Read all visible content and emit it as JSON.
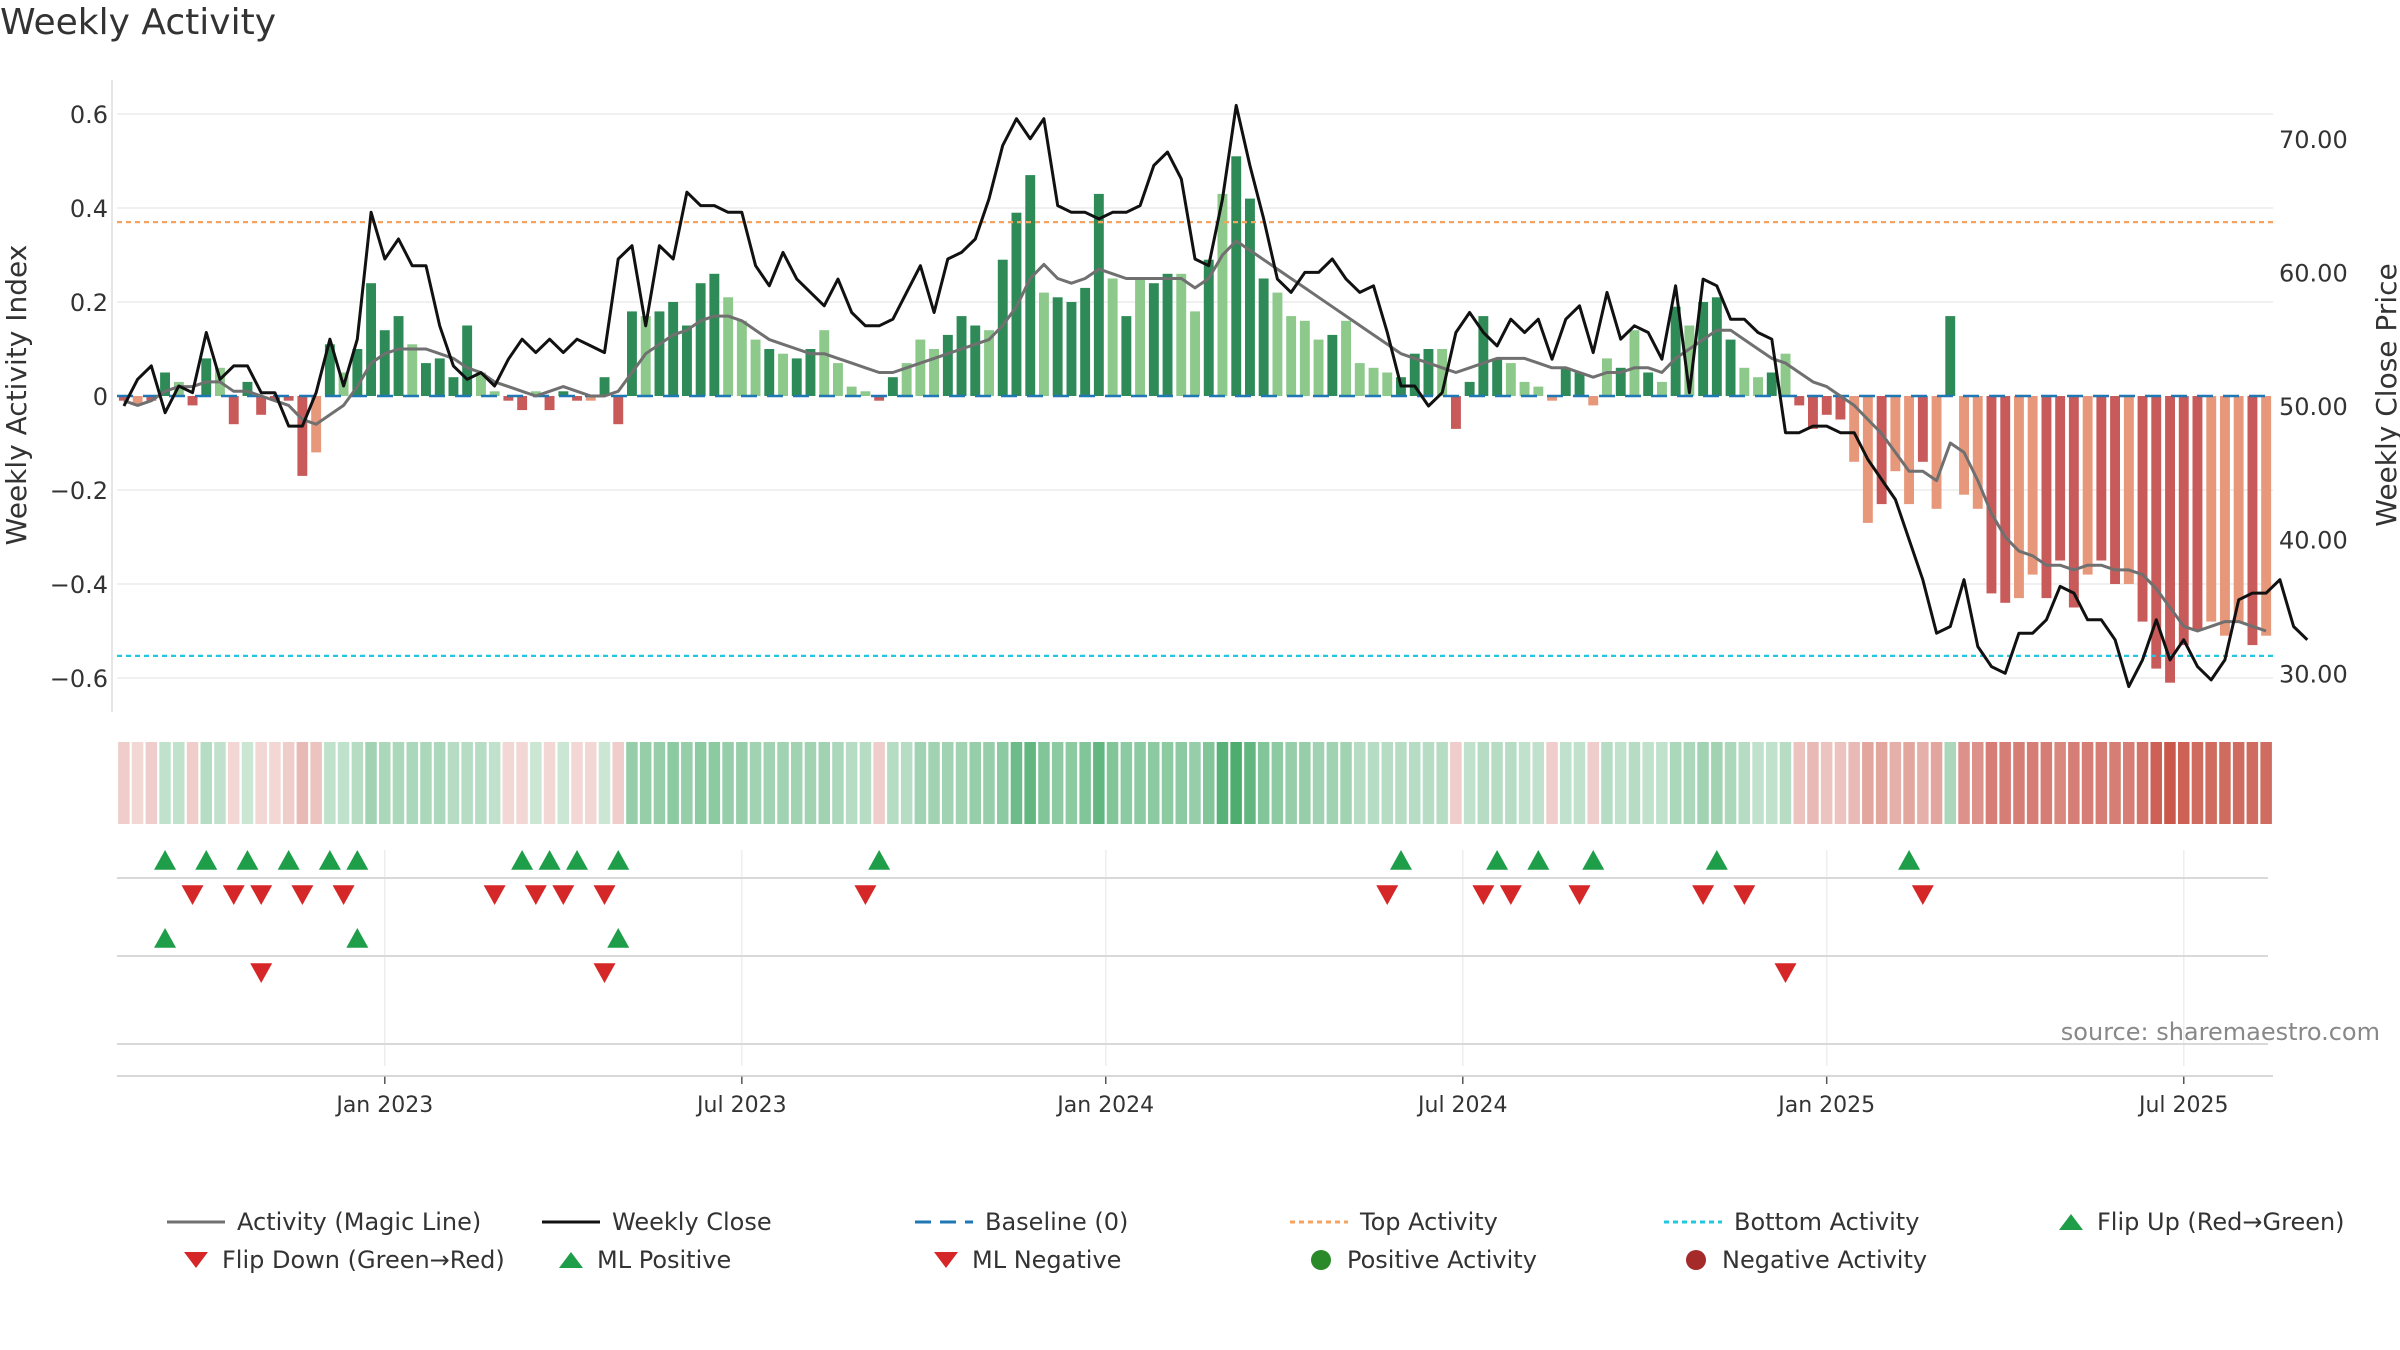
{
  "title": "Weekly Activity",
  "source_note": "source: sharemaestro.com",
  "colors": {
    "green_dark": "#2e8b57",
    "green_light": "#8cc98a",
    "red_dark": "#c85a5a",
    "red_light": "#e8987a",
    "magic_line": "#707070",
    "close_line": "#111111",
    "baseline": "#1f77b4",
    "top_line": "#f4a460",
    "bottom_line": "#22c7e0",
    "flip_up": "#1f9e4a",
    "flip_down": "#d62728",
    "pos_dot": "#2a8a2a",
    "neg_dot": "#a52a2a"
  },
  "legend": {
    "magic": "Activity (Magic Line)",
    "close": "Weekly Close",
    "baseline": "Baseline (0)",
    "top": "Top Activity",
    "bottom": "Bottom Activity",
    "flip_up": "Flip Up (Red→Green)",
    "flip_down": "Flip Down (Green→Red)",
    "ml_pos": "ML Positive",
    "ml_neg": "ML Negative",
    "pos_act": "Positive Activity",
    "neg_act": "Negative Activity"
  },
  "chart_data": {
    "type": "bar",
    "title": "Weekly Activity",
    "ylabel": "Weekly Activity Index",
    "y2label": "Weekly Close Price",
    "ylim": [
      -0.67,
      0.62
    ],
    "y2lim": [
      27.1,
      73.8
    ],
    "yticks": [
      -0.6,
      -0.4,
      -0.2,
      0,
      0.2,
      0.4,
      0.6
    ],
    "ytick_labels": [
      "−0.6",
      "−0.4",
      "−0.2",
      "0",
      "0.2",
      "0.4",
      "0.6"
    ],
    "y2ticks": [
      30,
      40,
      50,
      60,
      70
    ],
    "y2tick_labels": [
      "30.00",
      "40.00",
      "50.00",
      "60.00",
      "70.00"
    ],
    "x_ticks": [
      {
        "week": 19,
        "label": "Jan 2023"
      },
      {
        "week": 45,
        "label": "Jul 2023"
      },
      {
        "week": 71.5,
        "label": "Jan 2024"
      },
      {
        "week": 97.5,
        "label": "Jul 2024"
      },
      {
        "week": 124,
        "label": "Jan 2025"
      },
      {
        "week": 150,
        "label": "Jul 2025"
      }
    ],
    "top_activity": 0.37,
    "bottom_activity": -0.553,
    "baseline": 0,
    "weeks": 157,
    "activity": [
      -0.01,
      -0.02,
      -0.01,
      0.05,
      0.03,
      -0.02,
      0.08,
      0.06,
      -0.06,
      0.03,
      -0.04,
      -0.01,
      -0.01,
      -0.17,
      -0.12,
      0.11,
      0.05,
      0.1,
      0.24,
      0.14,
      0.17,
      0.11,
      0.07,
      0.08,
      0.04,
      0.15,
      0.05,
      0.01,
      -0.01,
      -0.03,
      0.01,
      -0.03,
      0.01,
      -0.01,
      -0.01,
      0.04,
      -0.06,
      0.18,
      0.17,
      0.18,
      0.2,
      0.15,
      0.24,
      0.26,
      0.21,
      0.16,
      0.12,
      0.1,
      0.09,
      0.08,
      0.1,
      0.14,
      0.07,
      0.02,
      0.01,
      -0.01,
      0.04,
      0.07,
      0.12,
      0.1,
      0.13,
      0.17,
      0.15,
      0.14,
      0.29,
      0.39,
      0.47,
      0.22,
      0.21,
      0.2,
      0.23,
      0.43,
      0.25,
      0.17,
      0.25,
      0.24,
      0.26,
      0.26,
      0.18,
      0.29,
      0.43,
      0.51,
      0.42,
      0.25,
      0.22,
      0.17,
      0.16,
      0.12,
      0.13,
      0.16,
      0.07,
      0.06,
      0.05,
      0.04,
      0.09,
      0.1,
      0.1,
      -0.07,
      0.03,
      0.17,
      0.08,
      0.07,
      0.03,
      0.02,
      -0.01,
      0.06,
      0.05,
      -0.02,
      0.08,
      0.06,
      0.14,
      0.05,
      0.03,
      0.19,
      0.15,
      0.2,
      0.21,
      0.12,
      0.06,
      0.04,
      0.05,
      0.09,
      -0.02,
      -0.07,
      -0.04,
      -0.05,
      -0.14,
      -0.27,
      -0.23,
      -0.16,
      -0.23,
      -0.14,
      -0.24,
      0.17,
      -0.21,
      -0.24,
      -0.42,
      -0.44,
      -0.43,
      -0.38,
      -0.43,
      -0.35,
      -0.45,
      -0.38,
      -0.35,
      -0.4,
      -0.4,
      -0.48,
      -0.58,
      -0.61,
      -0.53,
      -0.5,
      -0.48,
      -0.51,
      -0.48,
      -0.53,
      -0.51
    ],
    "shade": [
      "d",
      "l",
      "d",
      "d",
      "l",
      "d",
      "d",
      "l",
      "d",
      "d",
      "d",
      "d",
      "d",
      "d",
      "l",
      "d",
      "l",
      "d",
      "d",
      "d",
      "d",
      "l",
      "d",
      "d",
      "d",
      "d",
      "l",
      "l",
      "d",
      "d",
      "l",
      "d",
      "d",
      "d",
      "l",
      "d",
      "d",
      "d",
      "l",
      "d",
      "d",
      "d",
      "d",
      "d",
      "l",
      "l",
      "l",
      "d",
      "l",
      "d",
      "d",
      "l",
      "l",
      "l",
      "l",
      "d",
      "d",
      "l",
      "l",
      "l",
      "d",
      "d",
      "d",
      "l",
      "d",
      "d",
      "d",
      "l",
      "d",
      "d",
      "d",
      "d",
      "l",
      "d",
      "l",
      "d",
      "d",
      "l",
      "l",
      "d",
      "l",
      "d",
      "d",
      "d",
      "l",
      "l",
      "l",
      "l",
      "d",
      "l",
      "l",
      "l",
      "l",
      "d",
      "d",
      "d",
      "l",
      "d",
      "d",
      "d",
      "d",
      "l",
      "l",
      "l",
      "l",
      "d",
      "d",
      "l",
      "l",
      "d",
      "l",
      "d",
      "l",
      "d",
      "l",
      "d",
      "d",
      "d",
      "l",
      "l",
      "d",
      "l",
      "d",
      "d",
      "d",
      "d",
      "l",
      "l",
      "d",
      "l",
      "l",
      "d",
      "l",
      "d",
      "l",
      "l",
      "d",
      "d",
      "l",
      "l",
      "d",
      "d",
      "d",
      "l",
      "d",
      "d",
      "l",
      "d",
      "d",
      "d",
      "d",
      "d",
      "l",
      "l",
      "l",
      "d",
      "l",
      "l",
      "l",
      "d",
      "l"
    ],
    "magic_line": [
      -0.01,
      -0.02,
      -0.01,
      0.01,
      0.02,
      0.02,
      0.03,
      0.03,
      0.01,
      0.01,
      0,
      -0.01,
      -0.02,
      -0.05,
      -0.06,
      -0.04,
      -0.02,
      0.02,
      0.07,
      0.09,
      0.1,
      0.1,
      0.1,
      0.09,
      0.08,
      0.06,
      0.05,
      0.03,
      0.02,
      0.01,
      0,
      0.01,
      0.02,
      0.01,
      0,
      0,
      0.01,
      0.05,
      0.09,
      0.11,
      0.13,
      0.14,
      0.16,
      0.17,
      0.17,
      0.16,
      0.14,
      0.12,
      0.11,
      0.1,
      0.09,
      0.09,
      0.08,
      0.07,
      0.06,
      0.05,
      0.05,
      0.06,
      0.07,
      0.08,
      0.09,
      0.1,
      0.11,
      0.12,
      0.15,
      0.19,
      0.25,
      0.28,
      0.25,
      0.24,
      0.25,
      0.27,
      0.26,
      0.25,
      0.25,
      0.25,
      0.25,
      0.25,
      0.23,
      0.25,
      0.3,
      0.33,
      0.31,
      0.29,
      0.27,
      0.25,
      0.23,
      0.21,
      0.19,
      0.17,
      0.15,
      0.13,
      0.11,
      0.09,
      0.08,
      0.07,
      0.06,
      0.05,
      0.06,
      0.07,
      0.08,
      0.08,
      0.08,
      0.07,
      0.06,
      0.06,
      0.05,
      0.04,
      0.05,
      0.05,
      0.06,
      0.06,
      0.05,
      0.08,
      0.1,
      0.12,
      0.14,
      0.14,
      0.12,
      0.1,
      0.08,
      0.07,
      0.05,
      0.03,
      0.02,
      0,
      -0.02,
      -0.05,
      -0.08,
      -0.12,
      -0.16,
      -0.16,
      -0.18,
      -0.1,
      -0.12,
      -0.18,
      -0.25,
      -0.3,
      -0.33,
      -0.34,
      -0.36,
      -0.36,
      -0.37,
      -0.36,
      -0.36,
      -0.37,
      -0.37,
      -0.38,
      -0.41,
      -0.45,
      -0.49,
      -0.5,
      -0.49,
      -0.48,
      -0.48,
      -0.49,
      -0.5
    ],
    "weekly_close": [
      50,
      52,
      53,
      49.5,
      51.5,
      51,
      55.5,
      52,
      53,
      53,
      51,
      51,
      48.5,
      48.5,
      51,
      55,
      51.5,
      55,
      64.5,
      61,
      62.5,
      60.5,
      60.5,
      56,
      53,
      52,
      52.5,
      51.5,
      53.5,
      55,
      54,
      55,
      54,
      55,
      54.5,
      54,
      61,
      62,
      56,
      62,
      61,
      66,
      65,
      65,
      64.5,
      64.5,
      60.5,
      59,
      61.5,
      59.5,
      58.5,
      57.5,
      59.5,
      57,
      56,
      56,
      56.5,
      58.5,
      60.5,
      57,
      61,
      61.5,
      62.5,
      65.5,
      69.5,
      71.5,
      70,
      71.5,
      65,
      64.5,
      64.5,
      64,
      64.5,
      64.5,
      65,
      68,
      69,
      67,
      61,
      60.5,
      65.5,
      72.5,
      68,
      64,
      59.5,
      58.5,
      60,
      60,
      61,
      59.5,
      58.5,
      59,
      55.5,
      51.5,
      51.5,
      50,
      51,
      55.5,
      57,
      55.5,
      54.5,
      56.5,
      55.5,
      56.5,
      53.5,
      56.5,
      57.5,
      54,
      58.5,
      55,
      56,
      55.5,
      53.5,
      59,
      51,
      59.5,
      59,
      56.5,
      56.5,
      55.5,
      55,
      48,
      48,
      48.5,
      48.5,
      48,
      48,
      46,
      44.5,
      43,
      40,
      37,
      33,
      33.5,
      37,
      32,
      30.5,
      30,
      33,
      33,
      34,
      36.5,
      36,
      34,
      34,
      32.5,
      29,
      31,
      34,
      31,
      32.5,
      30.5,
      29.5,
      31,
      35.5,
      36,
      36,
      37,
      33.5,
      32.5
    ],
    "ribbon": [
      0.25,
      0.2,
      0.25,
      0.3,
      0.3,
      0.25,
      0.35,
      0.3,
      0.2,
      0.25,
      0.2,
      0.2,
      0.25,
      0.35,
      0.3,
      0.3,
      0.3,
      0.35,
      0.45,
      0.4,
      0.4,
      0.4,
      0.4,
      0.4,
      0.35,
      0.35,
      0.35,
      0.3,
      0.2,
      0.2,
      0.25,
      0.2,
      0.25,
      0.2,
      0.2,
      0.25,
      0.25,
      0.5,
      0.5,
      0.5,
      0.55,
      0.5,
      0.55,
      0.55,
      0.5,
      0.5,
      0.45,
      0.45,
      0.45,
      0.45,
      0.45,
      0.45,
      0.4,
      0.35,
      0.35,
      0.25,
      0.35,
      0.35,
      0.45,
      0.45,
      0.45,
      0.45,
      0.5,
      0.5,
      0.55,
      0.7,
      0.75,
      0.6,
      0.55,
      0.55,
      0.6,
      0.75,
      0.6,
      0.55,
      0.55,
      0.55,
      0.55,
      0.55,
      0.5,
      0.6,
      0.8,
      0.85,
      0.75,
      0.6,
      0.55,
      0.5,
      0.5,
      0.45,
      0.45,
      0.45,
      0.35,
      0.35,
      0.35,
      0.35,
      0.35,
      0.35,
      0.35,
      0.25,
      0.3,
      0.35,
      0.35,
      0.35,
      0.3,
      0.3,
      0.25,
      0.3,
      0.3,
      0.25,
      0.35,
      0.3,
      0.35,
      0.3,
      0.3,
      0.4,
      0.4,
      0.45,
      0.45,
      0.4,
      0.35,
      0.3,
      0.3,
      0.35,
      0.3,
      0.35,
      0.3,
      0.3,
      0.35,
      0.45,
      0.45,
      0.4,
      0.45,
      0.4,
      0.45,
      0.4,
      0.55,
      0.55,
      0.65,
      0.65,
      0.65,
      0.65,
      0.65,
      0.6,
      0.65,
      0.65,
      0.65,
      0.65,
      0.65,
      0.7,
      0.8,
      0.85,
      0.8,
      0.75,
      0.75,
      0.75,
      0.75,
      0.75,
      0.75
    ],
    "flip_up_weeks": [
      3,
      6,
      9,
      12,
      15,
      17,
      29,
      31,
      33,
      36,
      55,
      93,
      100,
      103,
      107,
      116,
      130
    ],
    "flip_down_weeks": [
      5,
      8,
      10,
      13,
      16,
      27,
      30,
      32,
      35,
      54,
      92,
      99,
      101,
      106,
      115,
      118,
      131
    ],
    "ml_positive_weeks": [
      3,
      17,
      36
    ],
    "ml_negative_weeks": [
      10,
      35,
      121
    ]
  }
}
